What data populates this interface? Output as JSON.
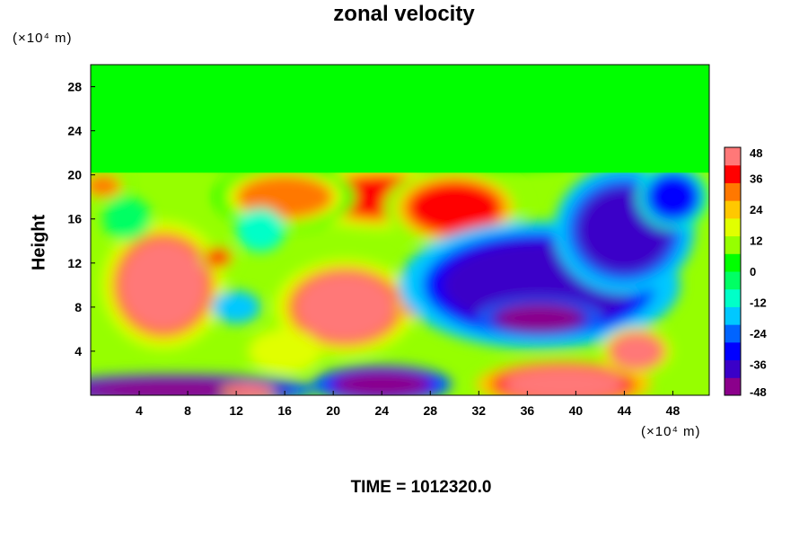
{
  "chart_data": {
    "type": "heatmap",
    "title": "zonal velocity",
    "xlabel": "",
    "ylabel": "Height",
    "x_unit": "(×10⁴ m)",
    "y_unit": "(×10⁴ m)",
    "footer": "TIME = 1012320.0",
    "xlim": [
      0,
      51
    ],
    "ylim": [
      0,
      30
    ],
    "x_ticks": [
      4,
      8,
      12,
      16,
      20,
      24,
      28,
      32,
      36,
      40,
      44,
      48
    ],
    "y_ticks": [
      4,
      8,
      12,
      16,
      20,
      24,
      28
    ],
    "colorbar": {
      "min": -48,
      "max": 48,
      "ticks": [
        48,
        36,
        24,
        12,
        0,
        -12,
        -24,
        -36,
        -48
      ],
      "colors": [
        "#8b008b",
        "#3a00c8",
        "#0000ff",
        "#0064ff",
        "#00c8ff",
        "#00ffc8",
        "#00ff64",
        "#00ff00",
        "#96ff00",
        "#e1ff00",
        "#ffc800",
        "#ff7800",
        "#ff0000",
        "#ff7878"
      ]
    },
    "features": [
      {
        "x": 25,
        "y": 25,
        "value": 0,
        "rx": 26,
        "ry": 5
      },
      {
        "x": 6,
        "y": 10,
        "value": 44,
        "rx": 3.5,
        "ry": 4
      },
      {
        "x": 21,
        "y": 8,
        "value": 42,
        "rx": 4,
        "ry": 3
      },
      {
        "x": 24,
        "y": 18,
        "value": 38,
        "rx": 5,
        "ry": 2
      },
      {
        "x": 30,
        "y": 17,
        "value": 36,
        "rx": 4,
        "ry": 2.5
      },
      {
        "x": 16,
        "y": 18,
        "value": 30,
        "rx": 4,
        "ry": 2
      },
      {
        "x": 10.5,
        "y": 12.5,
        "value": 36,
        "rx": 1,
        "ry": 0.8
      },
      {
        "x": 26.5,
        "y": 8,
        "value": 38,
        "rx": 0.8,
        "ry": 0.8
      },
      {
        "x": 1,
        "y": 19,
        "value": 30,
        "rx": 1.5,
        "ry": 1
      },
      {
        "x": 37,
        "y": 10,
        "value": -40,
        "rx": 8,
        "ry": 4
      },
      {
        "x": 37,
        "y": 7,
        "value": -48,
        "rx": 3.5,
        "ry": 1.2
      },
      {
        "x": 44,
        "y": 15,
        "value": -38,
        "rx": 4,
        "ry": 4
      },
      {
        "x": 48,
        "y": 18,
        "value": -34,
        "rx": 2,
        "ry": 2
      },
      {
        "x": 39,
        "y": 1,
        "value": 48,
        "rx": 5,
        "ry": 1.5
      },
      {
        "x": 45,
        "y": 4,
        "value": 44,
        "rx": 2,
        "ry": 1.5
      },
      {
        "x": 7,
        "y": 0.5,
        "value": -48,
        "rx": 8,
        "ry": 1
      },
      {
        "x": 24,
        "y": 1,
        "value": -46,
        "rx": 4,
        "ry": 1.2
      },
      {
        "x": 13,
        "y": 0.3,
        "value": 48,
        "rx": 1.5,
        "ry": 0.5
      },
      {
        "x": 12,
        "y": 8,
        "value": -18,
        "rx": 2,
        "ry": 1.5
      },
      {
        "x": 14,
        "y": 15,
        "value": -8,
        "rx": 2,
        "ry": 2
      },
      {
        "x": 3,
        "y": 16,
        "value": -6,
        "rx": 2,
        "ry": 2
      },
      {
        "x": 16,
        "y": 4,
        "value": 18,
        "rx": 3,
        "ry": 2
      }
    ]
  }
}
